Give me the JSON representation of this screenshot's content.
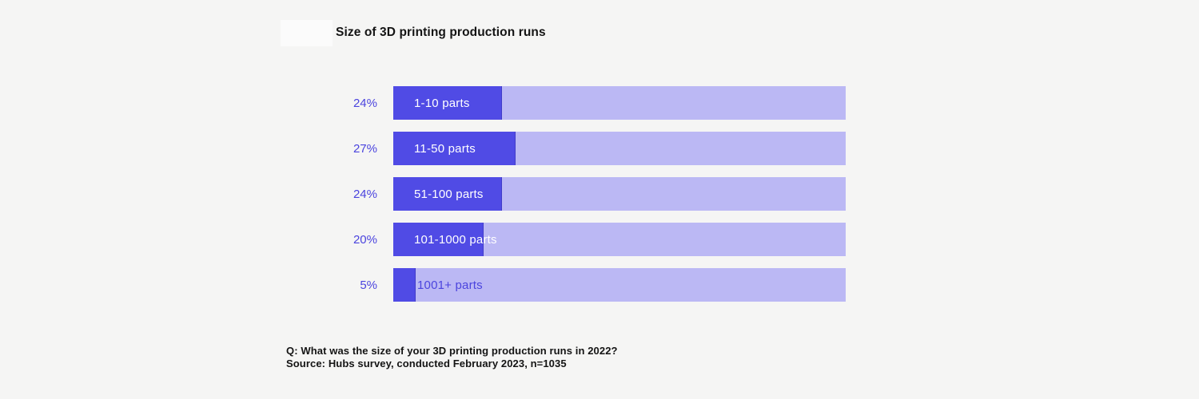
{
  "title": "Size of 3D printing production runs",
  "chart_data": {
    "type": "bar",
    "orientation": "horizontal",
    "title": "Size of 3D printing production runs",
    "categories": [
      "1-10 parts",
      "11-50 parts",
      "51-100 parts",
      "101-1000 parts",
      "1001+ parts"
    ],
    "values": [
      24,
      27,
      24,
      20,
      5
    ],
    "value_labels": [
      "24%",
      "27%",
      "24%",
      "20%",
      "5%"
    ],
    "unit": "%",
    "xlim": [
      0,
      100
    ],
    "grid": false,
    "legend": false,
    "colors": {
      "bar_fill": "#504BE5",
      "bar_track": "#BBB8F4",
      "value_label_text": "#4B44DE",
      "category_label_on_fill": "#FFFFFF",
      "category_label_on_track": "#4B44DE",
      "title_text": "#141414",
      "background": "#F5F5F4"
    }
  },
  "bars": [
    {
      "value_label": "24%",
      "category": "1-10 parts"
    },
    {
      "value_label": "27%",
      "category": "11-50 parts"
    },
    {
      "value_label": "24%",
      "category": "51-100 parts"
    },
    {
      "value_label": "20%",
      "category": "101-1000 parts"
    },
    {
      "value_label": "5%",
      "category": "1001+ parts"
    }
  ],
  "footnote": {
    "question": "Q: What was the size of your 3D printing production runs in 2022?",
    "source": "Source: Hubs survey, conducted February 2023, n=1035"
  }
}
